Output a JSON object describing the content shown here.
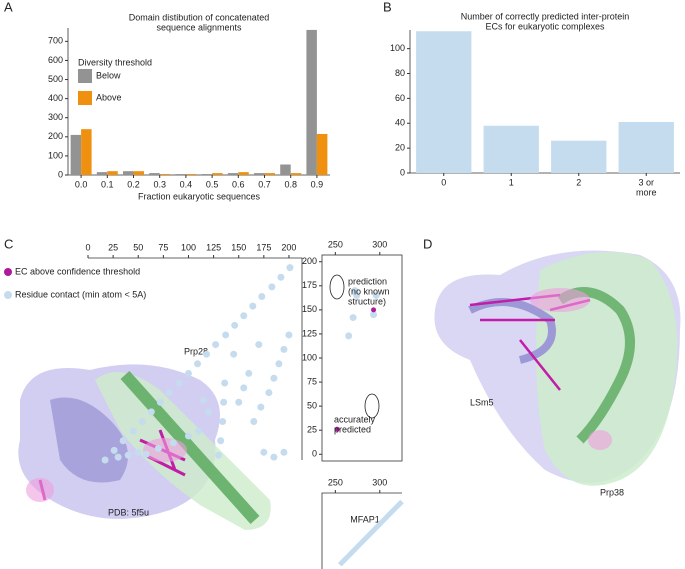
{
  "panel_labels": [
    "A",
    "B",
    "C",
    "D"
  ],
  "structure_labels": {
    "c": "PDB: 5f5u",
    "d_left": "LSm5",
    "d_right": "Prp38"
  },
  "chart_data": [
    {
      "type": "bar",
      "title": [
        "Domain distibution of concatenated",
        "sequence alignments"
      ],
      "x_label": "Fraction eukaryotic sequences",
      "categories": [
        "0.0",
        "0.1",
        "0.2",
        "0.3",
        "0.4",
        "0.5",
        "0.6",
        "0.7",
        "0.8",
        "0.9"
      ],
      "legend_title": "Diversity threshold",
      "series": [
        {
          "name": "Below",
          "color": "#939393",
          "values": [
            210,
            15,
            20,
            10,
            5,
            5,
            10,
            10,
            55,
            760
          ]
        },
        {
          "name": "Above",
          "color": "#f0900f",
          "values": [
            240,
            20,
            20,
            5,
            5,
            10,
            15,
            10,
            10,
            215
          ]
        }
      ],
      "ylim": [
        0,
        770
      ],
      "yticks": [
        0,
        100,
        200,
        300,
        400,
        500,
        600,
        700
      ]
    },
    {
      "type": "bar",
      "title": [
        "Number of correctly predicted inter-protein",
        "ECs for eukaryotic complexes"
      ],
      "categories": [
        [
          "0"
        ],
        [
          "1"
        ],
        [
          "2"
        ],
        [
          "3 or",
          "more"
        ]
      ],
      "values": [
        114,
        38,
        26,
        41
      ],
      "color": "#c5dcef",
      "ylim": [
        0,
        115
      ],
      "yticks": [
        0,
        20,
        40,
        60,
        80,
        100
      ]
    },
    {
      "type": "scatter",
      "title": "Prp28",
      "xlim": [
        0,
        210
      ],
      "ylim": [
        0,
        210
      ],
      "xticks": [
        0,
        25,
        50,
        75,
        100,
        125,
        150,
        175,
        200
      ],
      "series": [
        {
          "color": "#c5dcef",
          "x": [
            17,
            26,
            35,
            45,
            54,
            63,
            72,
            81,
            91,
            100,
            109,
            118,
            127,
            137,
            146,
            155,
            164,
            173,
            183,
            192,
            201,
            30,
            40,
            50,
            58,
            70,
            85,
            100,
            110,
            130,
            132,
            134,
            135,
            136,
            185,
            195,
            175,
            165,
            172,
            180,
            185,
            190,
            195,
            200,
            150,
            155,
            160,
            145,
            170,
            120,
            115
          ],
          "y": [
            0,
            10,
            20,
            30,
            40,
            50,
            60,
            70,
            80,
            90,
            100,
            110,
            120,
            130,
            140,
            150,
            160,
            170,
            180,
            190,
            200,
            3,
            5,
            8,
            6,
            12,
            18,
            25,
            30,
            5,
            20,
            40,
            60,
            80,
            3,
            8,
            8,
            40,
            55,
            70,
            85,
            100,
            115,
            130,
            60,
            75,
            90,
            110,
            120,
            50,
            62
          ]
        }
      ]
    },
    {
      "type": "scatter",
      "xlim": [
        235,
        325
      ],
      "ylim": [
        -7,
        207
      ],
      "xticks": [
        250,
        300
      ],
      "yticks": [
        0,
        25,
        50,
        75,
        100,
        125,
        150,
        175,
        200
      ],
      "series": [
        {
          "name": "EC above confidence threshold",
          "color": "#b0199e",
          "x": [
            252,
            293
          ],
          "y": [
            26,
            150
          ]
        },
        {
          "name": "Residue contact (min atom < 5A)",
          "color": "#c5dcef",
          "x": [
            265,
            270,
            274,
            272,
            293,
            296
          ],
          "y": [
            123,
            142,
            165,
            170,
            145,
            165
          ]
        }
      ],
      "annotations": [
        [
          "prediction",
          "(no known",
          "structure)"
        ],
        [
          "accurately",
          "predicted"
        ]
      ]
    },
    {
      "type": "line",
      "title": "MFAP1",
      "xlim": [
        235,
        325
      ],
      "ylim": [
        250,
        340
      ],
      "xticks": [
        250,
        300
      ],
      "series": [
        {
          "color": "#c5dcef",
          "x": [
            255,
            325
          ],
          "y": [
            255,
            330
          ]
        }
      ]
    }
  ]
}
